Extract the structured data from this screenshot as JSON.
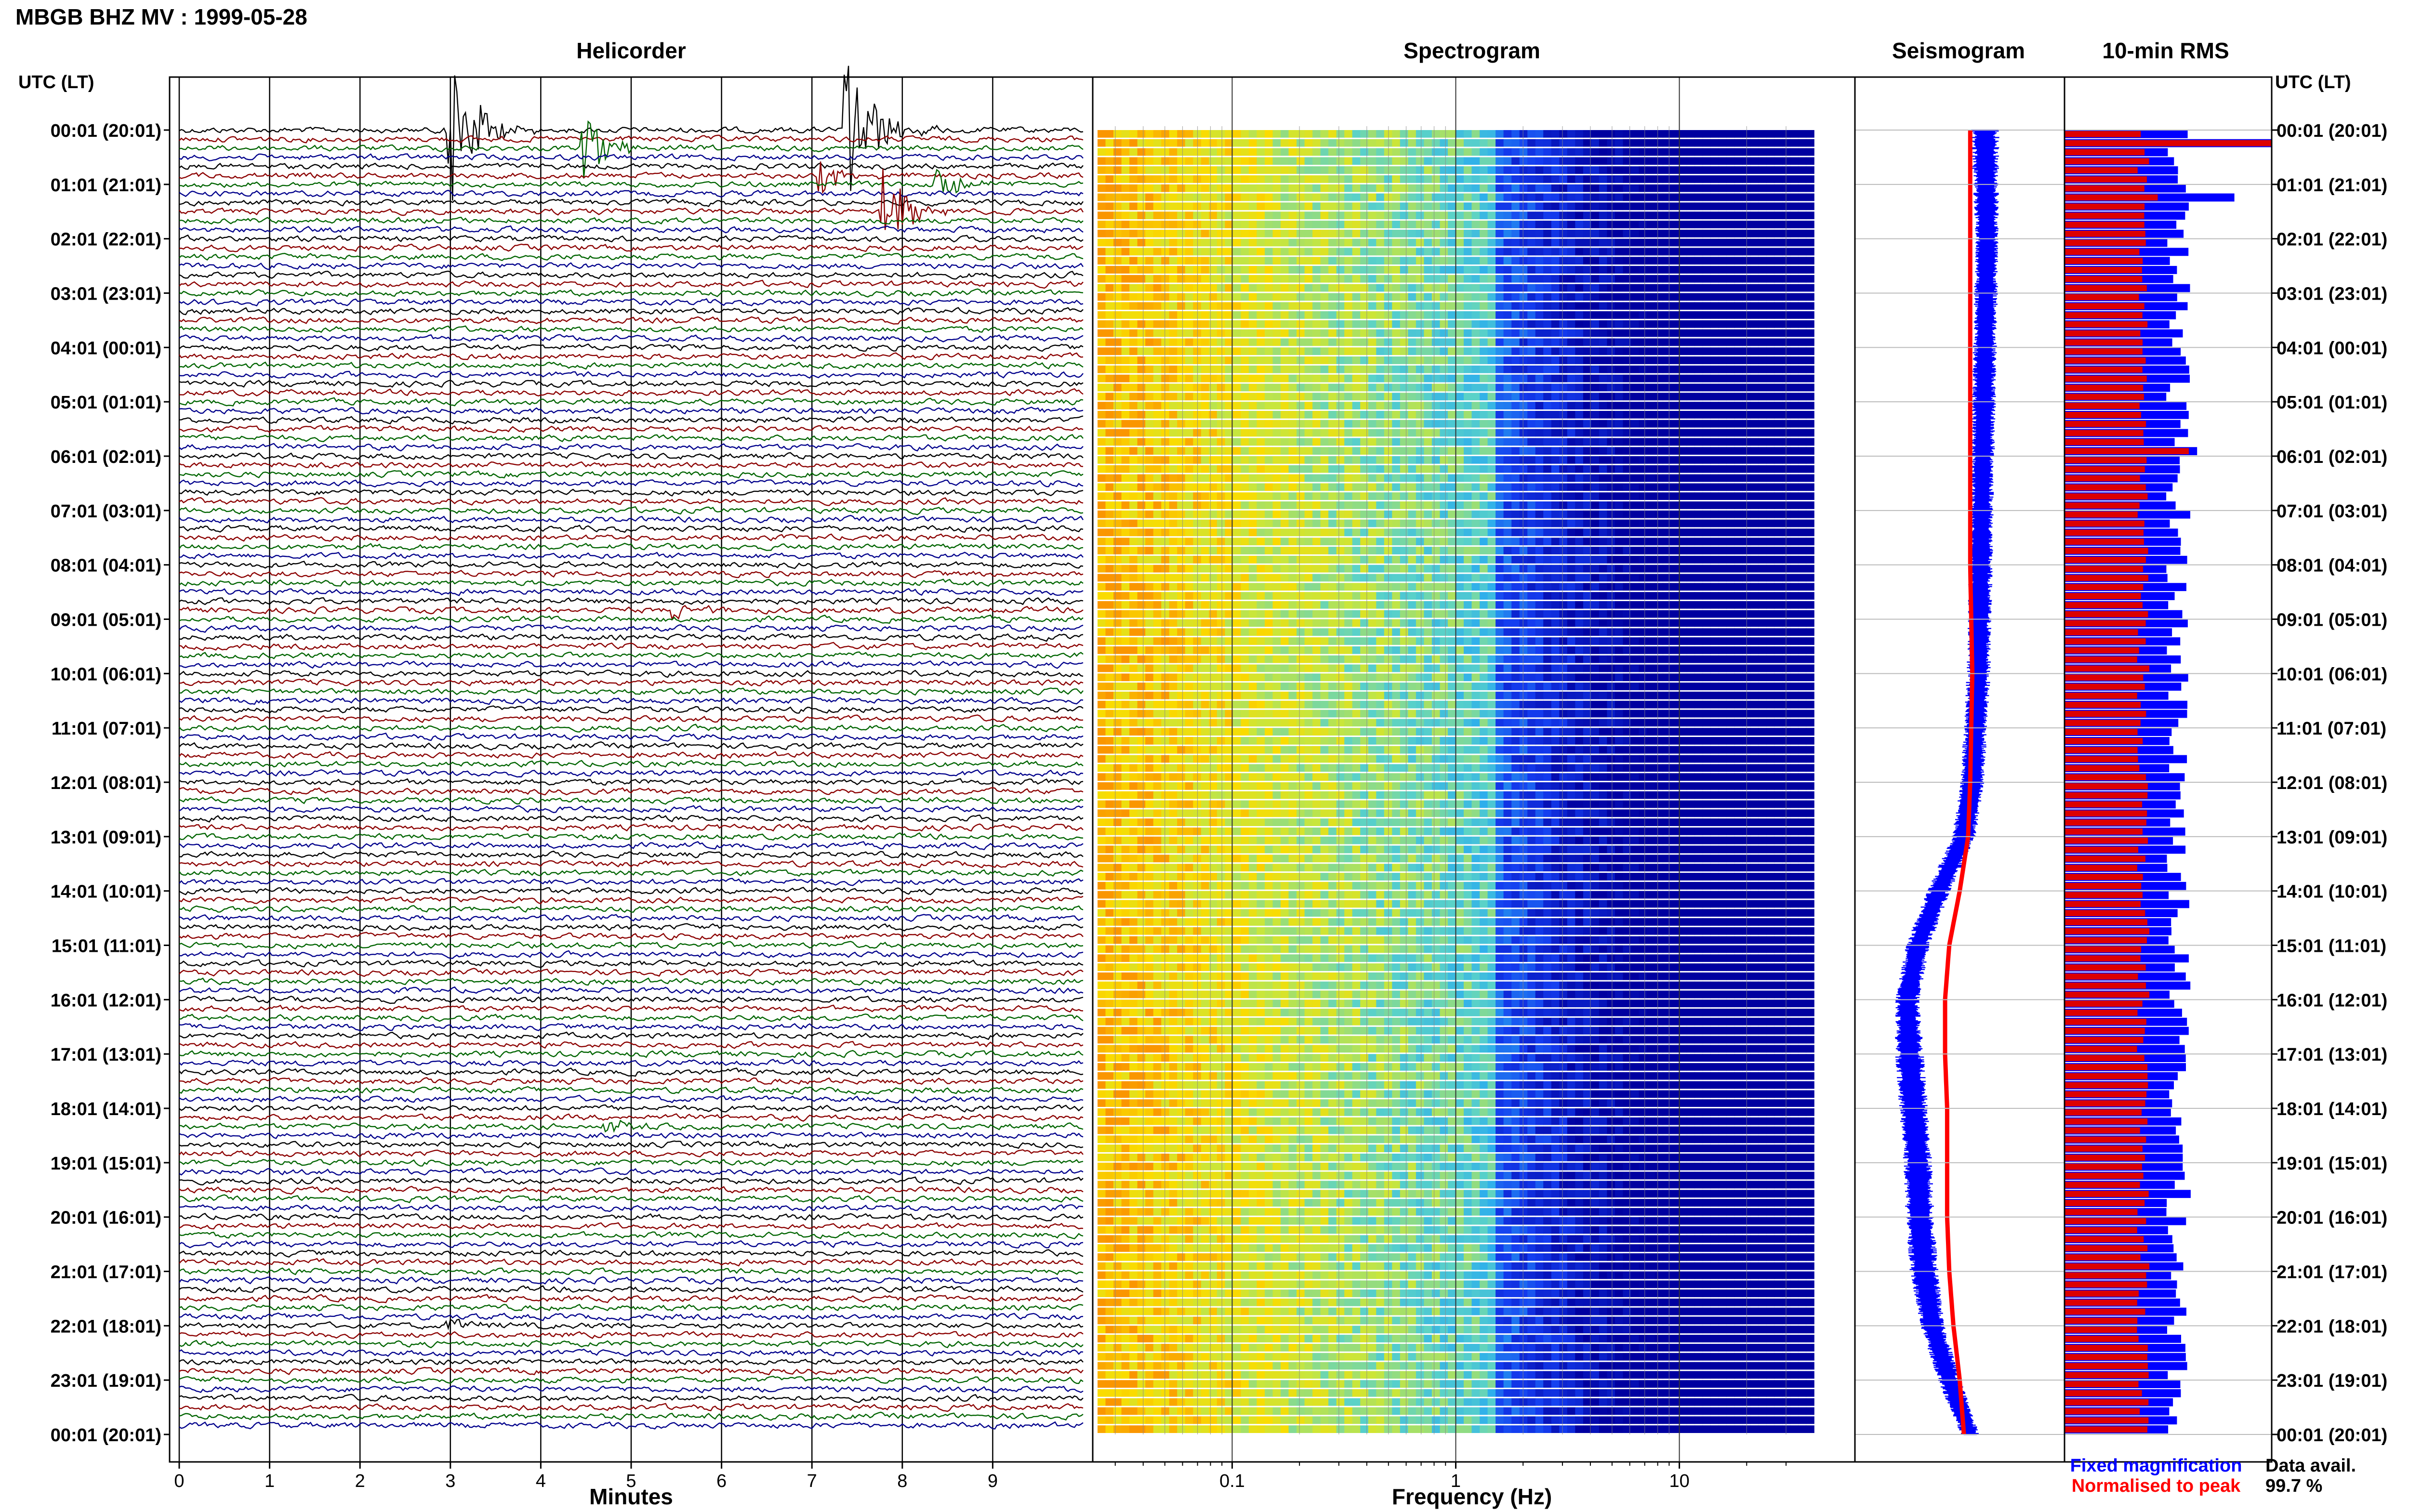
{
  "header": {
    "title": "MBGB BHZ MV : 1999-05-28"
  },
  "panels": {
    "helicorder": "Helicorder",
    "spectrogram": "Spectrogram",
    "seismogram": "Seismogram",
    "rms": "10-min RMS"
  },
  "axis_header_left": "UTC (LT)",
  "axis_header_right": "UTC (LT)",
  "time_labels": [
    "00:01 (20:01)",
    "01:01 (21:01)",
    "02:01 (22:01)",
    "03:01 (23:01)",
    "04:01 (00:01)",
    "05:01 (01:01)",
    "06:01 (02:01)",
    "07:01 (03:01)",
    "08:01 (04:01)",
    "09:01 (05:01)",
    "10:01 (06:01)",
    "11:01 (07:01)",
    "12:01 (08:01)",
    "13:01 (09:01)",
    "14:01 (10:01)",
    "15:01 (11:01)",
    "16:01 (12:01)",
    "17:01 (13:01)",
    "18:01 (14:01)",
    "19:01 (15:01)",
    "20:01 (16:01)",
    "21:01 (17:01)",
    "22:01 (18:01)",
    "23:01 (19:01)",
    "00:01 (20:01)"
  ],
  "legend": {
    "fixed": "Fixed magnification",
    "normalised": "Normalised to peak",
    "fixed_color": "#0000ff",
    "normalised_color": "#ff0000"
  },
  "data_avail": {
    "label": "Data avail.",
    "value": "99.7 %"
  },
  "colors": {
    "trace_cycle": [
      "#000000",
      "#8b0000",
      "#006400",
      "#00008b"
    ],
    "rms_fixed": "#0000ff",
    "rms_norm": "#dd0000"
  },
  "chart_data": [
    {
      "type": "line",
      "name": "helicorder",
      "xlabel": "Minutes",
      "x_ticks": [
        0,
        1,
        2,
        3,
        4,
        5,
        6,
        7,
        8,
        9
      ],
      "xlim": [
        0,
        10
      ],
      "rows": 144,
      "events": [
        {
          "row": 0,
          "minute": 3.0,
          "amp": 1.0
        },
        {
          "row": 0,
          "minute": 7.4,
          "amp": 0.9
        },
        {
          "row": 2,
          "minute": 4.5,
          "amp": 0.35
        },
        {
          "row": 9,
          "minute": 7.8,
          "amp": 0.55
        },
        {
          "row": 5,
          "minute": 7.1,
          "amp": 0.2
        },
        {
          "row": 6,
          "minute": 8.4,
          "amp": 0.18
        },
        {
          "row": 53,
          "minute": 5.5,
          "amp": 0.12
        },
        {
          "row": 110,
          "minute": 4.7,
          "amp": 0.1
        },
        {
          "row": 132,
          "minute": 3.0,
          "amp": 0.08
        }
      ]
    },
    {
      "type": "heatmap",
      "name": "spectrogram",
      "xlabel": "Frequency (Hz)",
      "x_scale": "log",
      "xlim": [
        0.025,
        40
      ],
      "x_tick_labels": [
        0.1,
        1,
        10
      ],
      "rows": 144
    },
    {
      "type": "line",
      "name": "seismogram",
      "series": [
        {
          "legend": "Fixed magnification",
          "color": "#0000ff",
          "hours": [
            0,
            2,
            4,
            6,
            8,
            10,
            12,
            13,
            14,
            15,
            16,
            17,
            18,
            19,
            20,
            21,
            22,
            23,
            24
          ],
          "center": [
            0.62,
            0.63,
            0.62,
            0.61,
            0.6,
            0.59,
            0.56,
            0.52,
            0.4,
            0.3,
            0.25,
            0.26,
            0.28,
            0.3,
            0.31,
            0.33,
            0.37,
            0.45,
            0.55
          ],
          "half_width": [
            0.06,
            0.05,
            0.05,
            0.05,
            0.05,
            0.05,
            0.05,
            0.05,
            0.05,
            0.05,
            0.05,
            0.06,
            0.06,
            0.06,
            0.06,
            0.06,
            0.05,
            0.05,
            0.04
          ]
        },
        {
          "legend": "Normalised to peak",
          "color": "#ff0000",
          "hours": [
            0,
            2,
            4,
            6,
            8,
            10,
            12,
            13,
            14,
            15,
            16,
            17,
            18,
            19,
            20,
            21,
            22,
            23,
            24
          ],
          "center": [
            0.55,
            0.55,
            0.55,
            0.55,
            0.55,
            0.56,
            0.55,
            0.54,
            0.5,
            0.45,
            0.43,
            0.43,
            0.44,
            0.44,
            0.44,
            0.45,
            0.47,
            0.5,
            0.52
          ]
        }
      ]
    },
    {
      "type": "bar",
      "name": "10-min RMS",
      "bins": 144,
      "fixed_typical": 0.55,
      "norm_typical": 0.38,
      "peaks": [
        {
          "bin": 1,
          "fixed": 1.0,
          "norm": 1.0
        },
        {
          "bin": 7,
          "fixed": 0.82,
          "norm": 0.45
        },
        {
          "bin": 35,
          "fixed": 0.64,
          "norm": 0.6
        }
      ]
    }
  ]
}
